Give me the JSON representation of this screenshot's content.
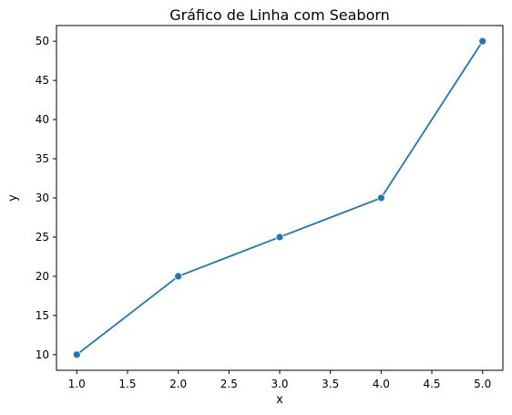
{
  "chart_data": {
    "type": "line",
    "title": "Gráfico de Linha com Seaborn",
    "xlabel": "x",
    "ylabel": "y",
    "x": [
      1.0,
      2.0,
      3.0,
      4.0,
      5.0
    ],
    "series": [
      {
        "values": [
          10,
          20,
          25,
          30,
          50
        ],
        "color": "#1f77b4",
        "marker": "circle"
      }
    ],
    "xlim": [
      0.8,
      5.2
    ],
    "ylim": [
      8,
      52
    ],
    "xticks": [
      1.0,
      1.5,
      2.0,
      2.5,
      3.0,
      3.5,
      4.0,
      4.5,
      5.0
    ],
    "xtick_labels": [
      "1.0",
      "1.5",
      "2.0",
      "2.5",
      "3.0",
      "3.5",
      "4.0",
      "4.5",
      "5.0"
    ],
    "yticks": [
      10,
      15,
      20,
      25,
      30,
      35,
      40,
      45,
      50
    ],
    "ytick_labels": [
      "10",
      "15",
      "20",
      "25",
      "30",
      "35",
      "40",
      "45",
      "50"
    ],
    "grid": false,
    "legend": false
  }
}
